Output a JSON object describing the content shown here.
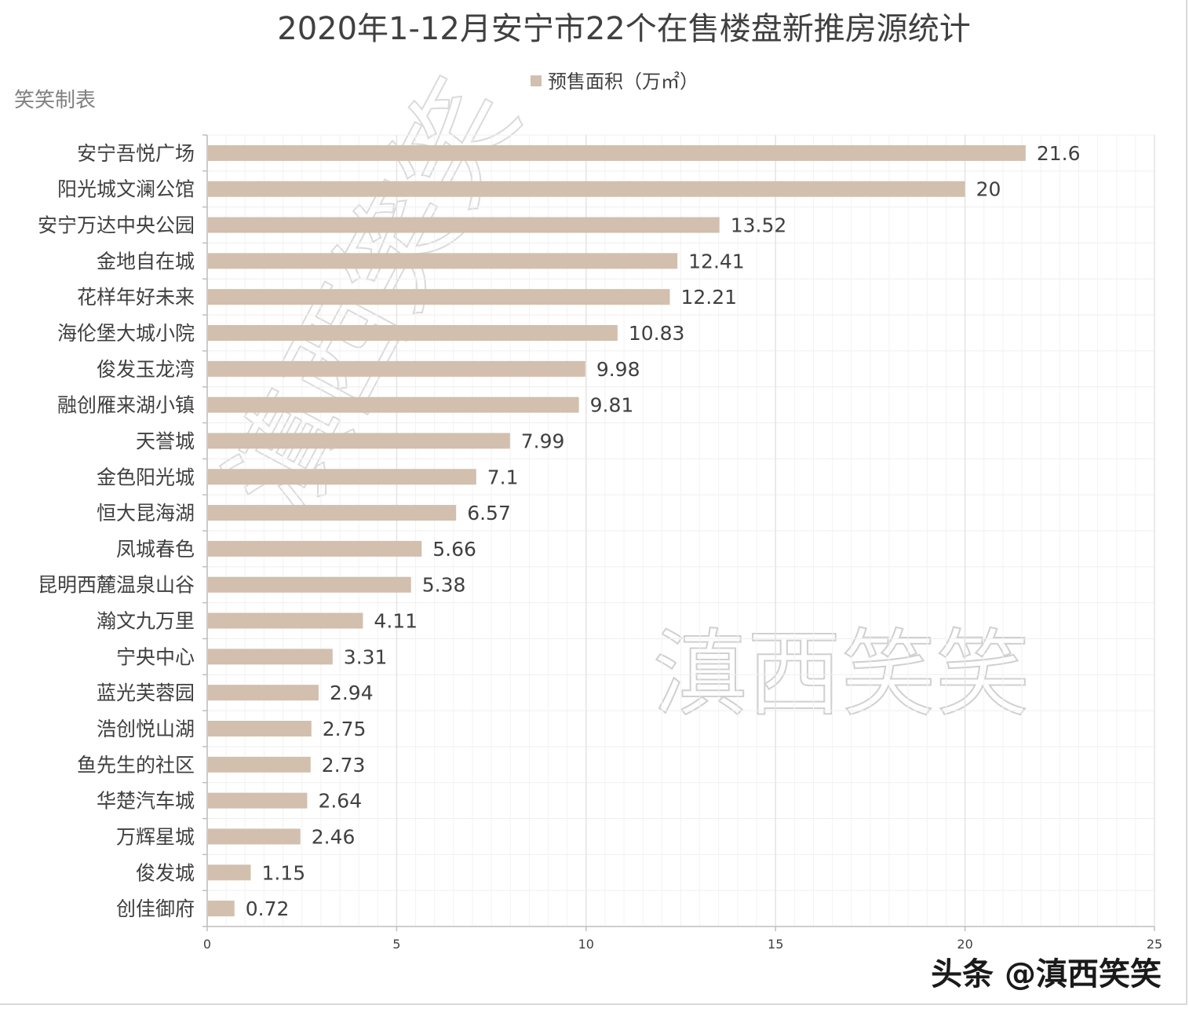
{
  "maker_note": "笑笑制表",
  "watermark": "滇西笑笑",
  "credit": "头条 @滇西笑笑",
  "colors": {
    "bar": "#d2bfae",
    "grid": "#e4e4e4",
    "axis": "#bfbfbf",
    "text": "#404040"
  },
  "chart_data": {
    "type": "bar",
    "orientation": "horizontal",
    "title": "2020年1-12月安宁市22个在售楼盘新推房源统计",
    "legend_position": "top",
    "grid": true,
    "xlim": [
      0,
      25
    ],
    "x_ticks": [
      0,
      5,
      10,
      15,
      20,
      25
    ],
    "categories": [
      "安宁吾悦广场",
      "阳光城文澜公馆",
      "安宁万达中央公园",
      "金地自在城",
      "花样年好未来",
      "海伦堡大城小院",
      "俊发玉龙湾",
      "融创雁来湖小镇",
      "天誉城",
      "金色阳光城",
      "恒大昆海湖",
      "凤城春色",
      "昆明西麓温泉山谷",
      "瀚文九万里",
      "宁央中心",
      "蓝光芙蓉园",
      "浩创悦山湖",
      "鱼先生的社区",
      "华楚汽车城",
      "万辉星城",
      "俊发城",
      "创佳御府"
    ],
    "series": [
      {
        "name": "预售面积（万㎡）",
        "values": [
          21.6,
          20,
          13.52,
          12.41,
          12.21,
          10.83,
          9.98,
          9.81,
          7.99,
          7.1,
          6.57,
          5.66,
          5.38,
          4.11,
          3.31,
          2.94,
          2.75,
          2.73,
          2.64,
          2.46,
          1.15,
          0.72
        ],
        "labels": [
          "21.6",
          "20",
          "13.52",
          "12.41",
          "12.21",
          "10.83",
          "9.98",
          "9.81",
          "7.99",
          "7.1",
          "6.57",
          "5.66",
          "5.38",
          "4.11",
          "3.31",
          "2.94",
          "2.75",
          "2.73",
          "2.64",
          "2.46",
          "1.15",
          "0.72"
        ]
      }
    ]
  }
}
